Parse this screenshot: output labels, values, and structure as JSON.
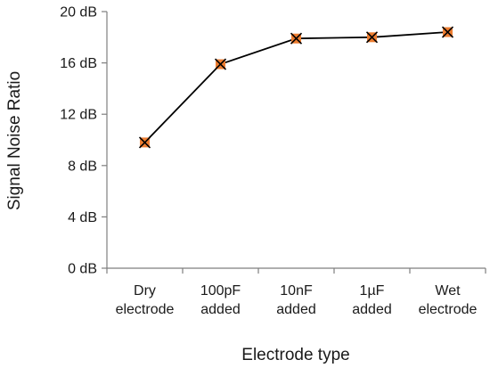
{
  "chart_data": {
    "type": "line",
    "categories": [
      "Dry electrode",
      "100pF added",
      "10nF added",
      "1µF added",
      "Wet electrode"
    ],
    "category_lines": [
      [
        "Dry",
        "electrode"
      ],
      [
        "100pF",
        "added"
      ],
      [
        "10nF",
        "added"
      ],
      [
        "1µF",
        "added"
      ],
      [
        "Wet",
        "electrode"
      ]
    ],
    "series": [
      {
        "values": [
          9.8,
          15.9,
          17.9,
          18.0,
          18.4
        ]
      }
    ],
    "title": "",
    "xlabel": "Electrode type",
    "ylabel": "Signal Noise Ratio",
    "ylim": [
      0,
      20
    ],
    "yticks": [
      0,
      4,
      8,
      12,
      16,
      20
    ],
    "ytick_labels": [
      "0 dB",
      "4 dB",
      "8 dB",
      "12 dB",
      "16 dB",
      "20 dB"
    ],
    "grid": false,
    "legend": "none",
    "colors": {
      "line": "#000000",
      "marker_fill": "#ed7d31",
      "marker_cross": "#000000",
      "axis": "#7f7f7f"
    }
  }
}
